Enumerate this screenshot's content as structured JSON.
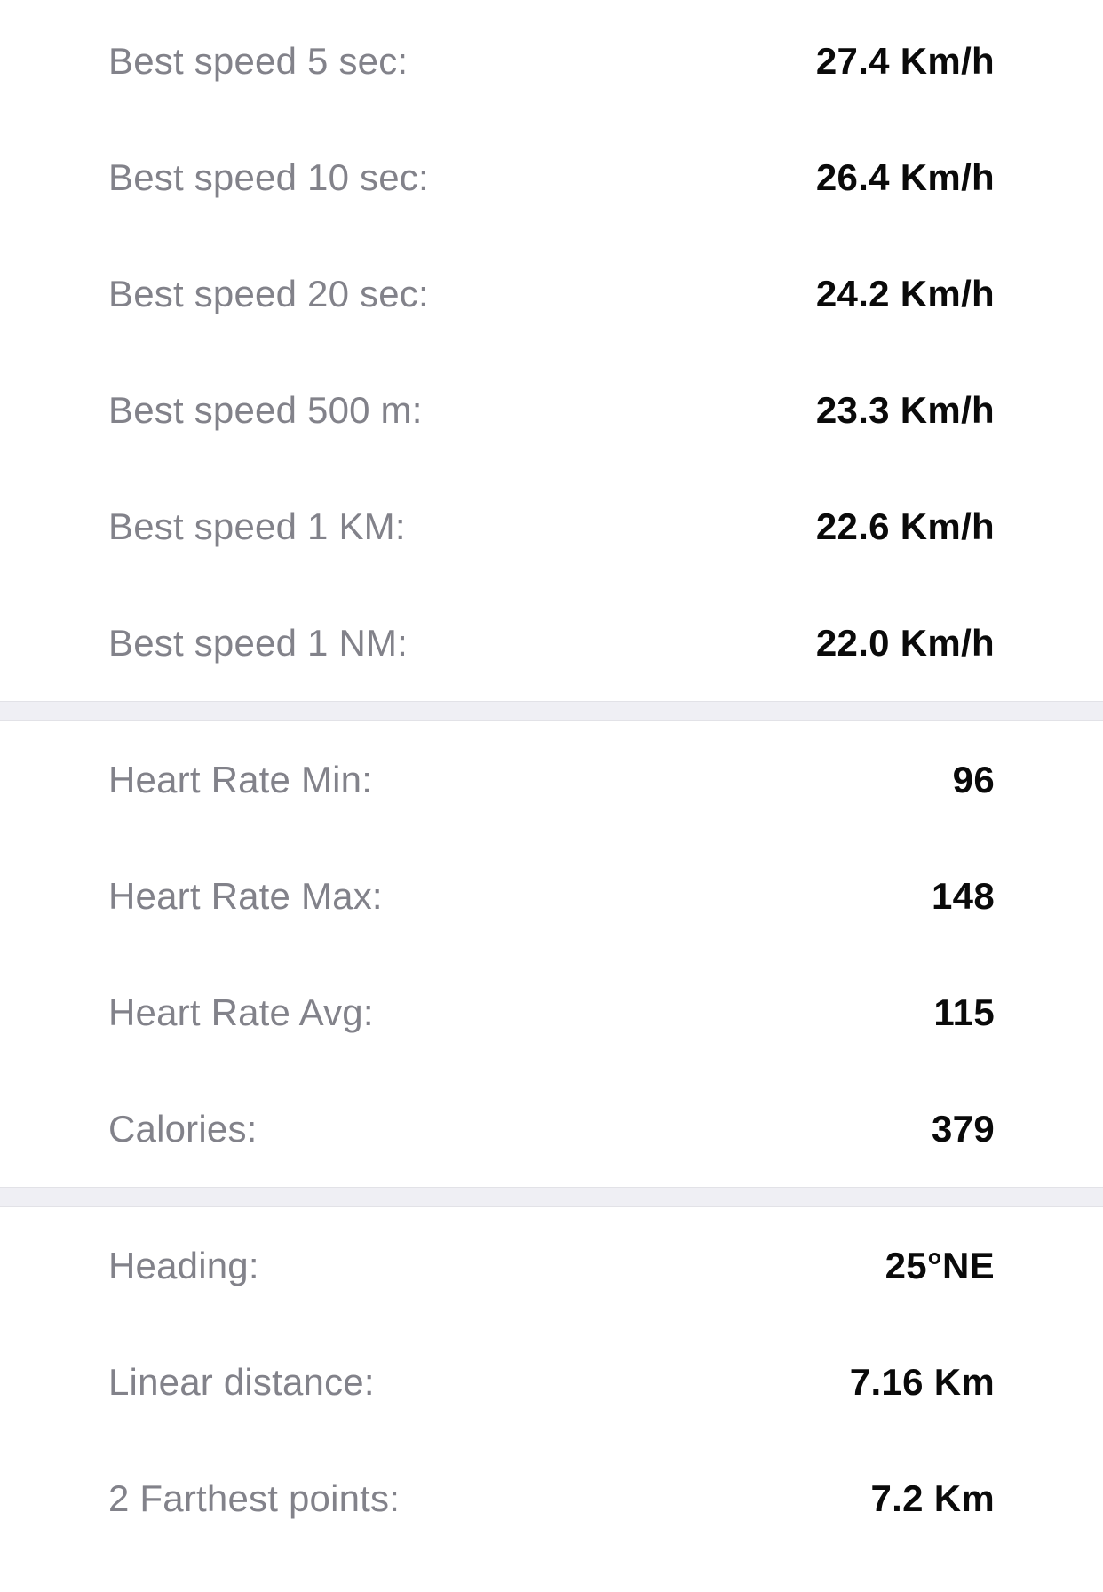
{
  "colors": {
    "background": "#ffffff",
    "label_gray": "#82828a",
    "value_black": "#0a0a0a",
    "divider_gray": "#efeff4"
  },
  "sections": [
    {
      "id": "best-speeds",
      "rows": [
        {
          "label": "Best speed 5 sec:",
          "value": "27.4 Km/h"
        },
        {
          "label": "Best speed 10 sec:",
          "value": "26.4 Km/h"
        },
        {
          "label": "Best speed 20 sec:",
          "value": "24.2 Km/h"
        },
        {
          "label": "Best speed 500 m:",
          "value": "23.3 Km/h"
        },
        {
          "label": "Best speed 1 KM:",
          "value": "22.6 Km/h"
        },
        {
          "label": "Best speed 1 NM:",
          "value": "22.0 Km/h"
        }
      ]
    },
    {
      "id": "heart-rate-calories",
      "rows": [
        {
          "label": "Heart Rate Min:",
          "value": "96"
        },
        {
          "label": "Heart Rate Max:",
          "value": "148"
        },
        {
          "label": "Heart Rate Avg:",
          "value": "115"
        },
        {
          "label": "Calories:",
          "value": "379"
        }
      ]
    },
    {
      "id": "heading-distance",
      "rows": [
        {
          "label": "Heading:",
          "value": "25°NE"
        },
        {
          "label": "Linear distance:",
          "value": "7.16 Km"
        },
        {
          "label": "2 Farthest points:",
          "value": "7.2 Km"
        }
      ]
    }
  ]
}
